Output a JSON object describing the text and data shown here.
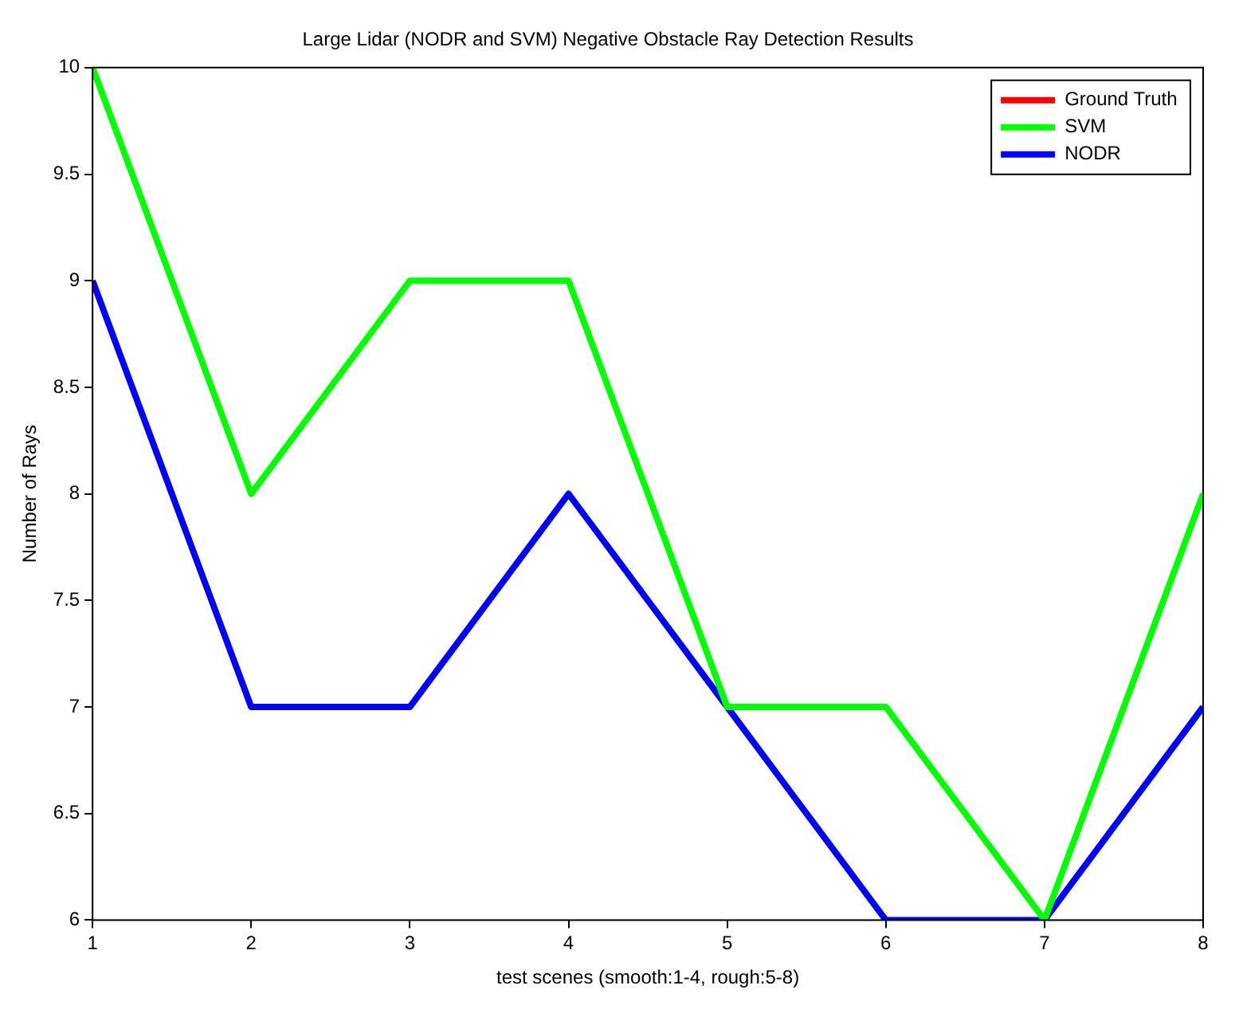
{
  "chart_data": {
    "type": "line",
    "title": "Large Lidar (NODR and SVM) Negative Obstacle Ray Detection Results",
    "xlabel": "test scenes (smooth:1-4, rough:5-8)",
    "ylabel": "Number of Rays",
    "x": [
      1,
      2,
      3,
      4,
      5,
      6,
      7,
      8
    ],
    "series": [
      {
        "name": "Ground Truth",
        "color": "#ff0000",
        "values": [
          null,
          null,
          null,
          null,
          null,
          null,
          null,
          null
        ]
      },
      {
        "name": "SVM",
        "color": "#00ff00",
        "values": [
          10,
          8,
          9,
          9,
          7,
          7,
          6,
          8
        ]
      },
      {
        "name": "NODR",
        "color": "#0000ff",
        "values": [
          9,
          7,
          7,
          8,
          7,
          6,
          6,
          7
        ]
      }
    ],
    "xlim": [
      1,
      8
    ],
    "xticks": [
      1,
      2,
      3,
      4,
      5,
      6,
      7,
      8
    ],
    "ylim": [
      6,
      10
    ],
    "yticks": [
      6,
      6.5,
      7,
      7.5,
      8,
      8.5,
      9,
      9.5,
      10
    ],
    "grid": false,
    "legend": "top right",
    "marker": "none",
    "line_style": "solid"
  }
}
